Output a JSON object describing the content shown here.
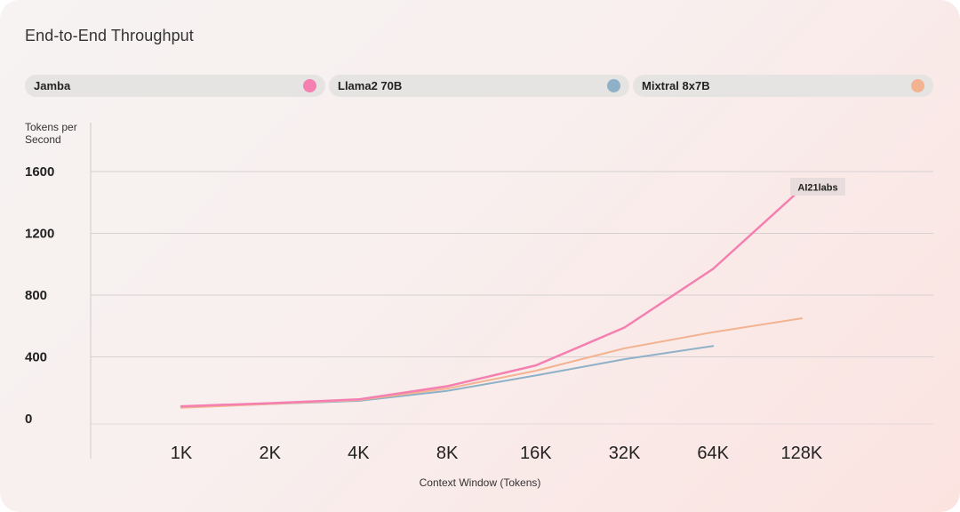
{
  "chart_data": {
    "type": "line",
    "title": "End-to-End Throughput",
    "ylabel": "Tokens per Second",
    "xlabel": "Context Window (Tokens)",
    "categories": [
      "1K",
      "2K",
      "4K",
      "8K",
      "16K",
      "32K",
      "64K",
      "128K"
    ],
    "y_ticks": [
      0,
      400,
      800,
      1200,
      1600
    ],
    "ylim": [
      0,
      1600
    ],
    "grid": true,
    "legend_position": "top",
    "series": [
      {
        "name": "Jamba",
        "color": "#f47fb0",
        "x": [
          1,
          2,
          4,
          8,
          16,
          32,
          64,
          128
        ],
        "values": [
          80,
          100,
          125,
          210,
          345,
          590,
          970,
          1490
        ]
      },
      {
        "name": "Llama2 70B",
        "color": "#8fb1c8",
        "x": [
          1,
          2,
          4,
          8,
          16,
          32,
          64
        ],
        "values": [
          75,
          95,
          115,
          180,
          280,
          385,
          470
        ]
      },
      {
        "name": "Mixtral 8x7B",
        "color": "#f3b391",
        "x": [
          1,
          2,
          4,
          8,
          16,
          32,
          64,
          128
        ],
        "values": [
          70,
          95,
          120,
          195,
          310,
          455,
          560,
          650
        ]
      }
    ],
    "annotation": {
      "text": "AI21labs",
      "series": "Jamba"
    }
  }
}
